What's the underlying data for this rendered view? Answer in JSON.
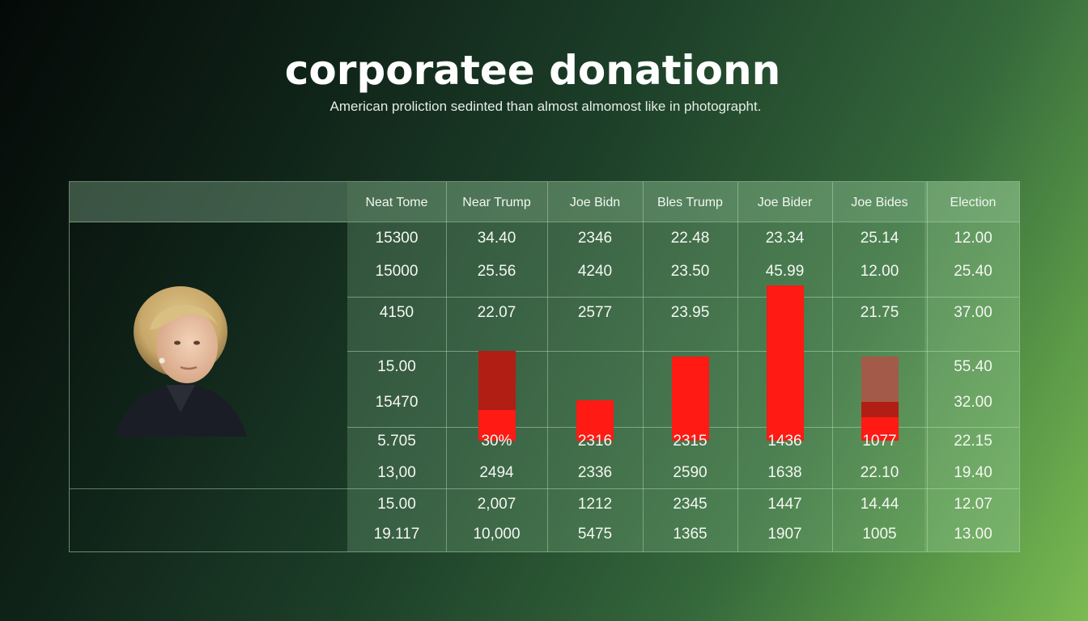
{
  "page": {
    "title": "corporatee donationn",
    "subtitle": "American proliction sedinted than almost almomost like in photographt."
  },
  "colors": {
    "bar_primary": "#ff1a14",
    "bar_dark": "#b01e14",
    "bar_muted": "#a35a48"
  },
  "chart_data": {
    "type": "table",
    "title": "corporatee donationn",
    "subtitle": "American proliction sedinted than almost almomost like in photographt.",
    "columns": [
      "Neat Tome",
      "Near Trump",
      "Joe Bidn",
      "Bles Trump",
      "Joe Bider",
      "Joe Bides",
      "Election"
    ],
    "rows": [
      [
        "15300",
        "34.40",
        "2346",
        "22.48",
        "23.34",
        "25.14",
        "12.00"
      ],
      [
        "15000",
        "25.56",
        "4240",
        "23.50",
        "45.99",
        "12.00",
        "25.40"
      ],
      [
        "4150",
        "22.07",
        "2577",
        "23.95",
        "",
        "21.75",
        "37.00"
      ],
      [
        "15.00",
        "",
        "",
        "",
        "",
        "",
        "55.40"
      ],
      [
        "15470",
        "",
        "",
        "",
        "",
        "",
        "32.00"
      ],
      [
        "5.705",
        "30%",
        "2316",
        "2315",
        "1436",
        "1077",
        "22.15"
      ],
      [
        "13,00",
        "2494",
        "2336",
        "2590",
        "1638",
        "22.10",
        "19.40"
      ],
      [
        "15.00",
        "2,007",
        "1212",
        "2345",
        "1447",
        "14.44",
        "12.07"
      ],
      [
        "19.117",
        "10,000",
        "5475",
        "1365",
        "1907",
        "1005",
        "13.00"
      ]
    ],
    "bars": [
      {
        "column": 1,
        "value": 0.58,
        "bright_fraction": 0.34
      },
      {
        "column": 2,
        "value": 0.26,
        "bright_fraction": 1.0
      },
      {
        "column": 3,
        "value": 0.54,
        "bright_fraction": 1.0
      },
      {
        "column": 4,
        "value": 1.0,
        "bright_fraction": 1.0
      },
      {
        "column": 5,
        "value": 0.54,
        "bright_fraction": 0.28,
        "middle_fraction": 0.18
      }
    ],
    "grid": true,
    "legend": "none"
  }
}
